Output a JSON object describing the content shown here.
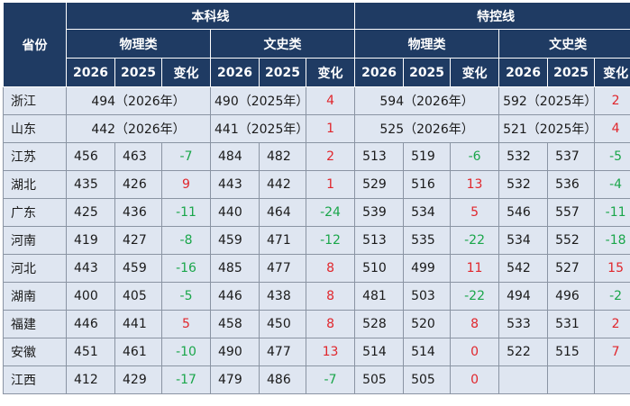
{
  "header": {
    "province": "省份",
    "undergrad": "本科线",
    "special": "特控线",
    "physics": "物理类",
    "arts": "文史类",
    "year_a": "2026",
    "year_b": "2025",
    "change": "变化"
  },
  "colors": {
    "header_bg": "#1f3b63",
    "body_bg": "#dfe6f1",
    "increase": "#e0262c",
    "decrease": "#1aa64a"
  },
  "merged_rows": [
    {
      "province": "浙江",
      "ug_physics": "494（2026年）",
      "ug_arts": "490（2025年）",
      "ug_change": "4",
      "sp_physics": "594（2026年）",
      "sp_arts": "592（2025年）",
      "sp_change": "2"
    },
    {
      "province": "山东",
      "ug_physics": "442（2026年）",
      "ug_arts": "441（2025年）",
      "ug_change": "1",
      "sp_physics": "525（2026年）",
      "sp_arts": "521（2025年）",
      "sp_change": "4"
    }
  ],
  "rows": [
    {
      "province": "江苏",
      "c": [
        "456",
        "463",
        "-7",
        "484",
        "482",
        "2",
        "513",
        "519",
        "-6",
        "532",
        "537",
        "-5"
      ]
    },
    {
      "province": "湖北",
      "c": [
        "435",
        "426",
        "9",
        "443",
        "442",
        "1",
        "529",
        "516",
        "13",
        "532",
        "536",
        "-4"
      ]
    },
    {
      "province": "广东",
      "c": [
        "425",
        "436",
        "-11",
        "440",
        "464",
        "-24",
        "539",
        "534",
        "5",
        "546",
        "557",
        "-11"
      ]
    },
    {
      "province": "河南",
      "c": [
        "419",
        "427",
        "-8",
        "459",
        "471",
        "-12",
        "513",
        "535",
        "-22",
        "534",
        "552",
        "-18"
      ]
    },
    {
      "province": "河北",
      "c": [
        "443",
        "459",
        "-16",
        "485",
        "477",
        "8",
        "510",
        "499",
        "11",
        "542",
        "527",
        "15"
      ]
    },
    {
      "province": "湖南",
      "c": [
        "400",
        "405",
        "-5",
        "446",
        "438",
        "8",
        "481",
        "503",
        "-22",
        "494",
        "496",
        "-2"
      ]
    },
    {
      "province": "福建",
      "c": [
        "446",
        "441",
        "5",
        "458",
        "450",
        "8",
        "528",
        "520",
        "8",
        "533",
        "531",
        "2"
      ]
    },
    {
      "province": "安徽",
      "c": [
        "451",
        "461",
        "-10",
        "490",
        "477",
        "13",
        "514",
        "514",
        "0",
        "522",
        "515",
        "7"
      ]
    },
    {
      "province": "江西",
      "c": [
        "412",
        "429",
        "-17",
        "479",
        "486",
        "-7",
        "505",
        "505",
        "0",
        "",
        "",
        ""
      ]
    }
  ]
}
